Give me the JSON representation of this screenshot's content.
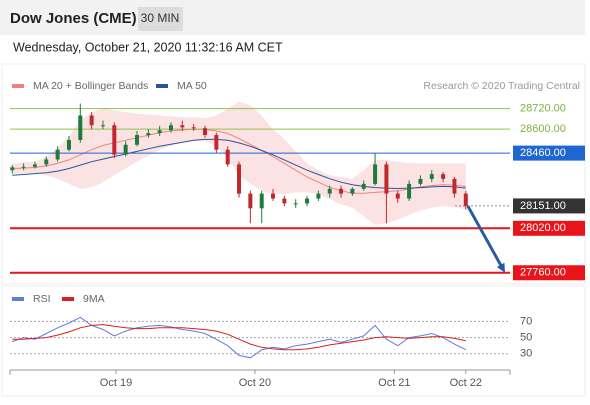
{
  "chart_data": [
    {
      "type": "candlestick",
      "title": "Dow Jones (CME)",
      "timeframe": "30 MIN",
      "subtitle": "Wednesday, October 21, 2020 11:32:16 AM CET",
      "source": "Research © 2020 Trading Central",
      "xlim": [
        -0.2,
        43.9
      ],
      "ylim": [
        27700,
        28800
      ],
      "up_color": "#1e7b3c",
      "down_color": "#c0282d",
      "open": [
        28360,
        28377,
        28380,
        28394,
        28423,
        28480,
        28537,
        28680,
        28623,
        28623,
        28451,
        28509,
        28566,
        28577,
        28594,
        28623,
        28611,
        28606,
        28566,
        28480,
        28394,
        28223,
        28137,
        28223,
        28194,
        28166,
        28166,
        28194,
        28223,
        28251,
        28223,
        28251,
        28280,
        28394,
        28223,
        28194,
        28280,
        28309,
        28337,
        28309,
        28223
      ],
      "high": [
        28390,
        28400,
        28410,
        28440,
        28500,
        28560,
        28750,
        28700,
        28650,
        28640,
        28530,
        28590,
        28600,
        28620,
        28640,
        28650,
        28630,
        28620,
        28580,
        28500,
        28410,
        28240,
        28240,
        28250,
        28210,
        28190,
        28210,
        28240,
        28270,
        28270,
        28260,
        28300,
        28460,
        28410,
        28240,
        28300,
        28330,
        28360,
        28350,
        28320,
        28240
      ],
      "low": [
        28340,
        28360,
        28370,
        28380,
        28410,
        28470,
        28520,
        28600,
        28600,
        28430,
        28440,
        28500,
        28550,
        28560,
        28580,
        28590,
        28590,
        28550,
        28460,
        28380,
        28200,
        28050,
        28050,
        28180,
        28150,
        28140,
        28150,
        28180,
        28200,
        28200,
        28210,
        28240,
        28270,
        28050,
        28170,
        28180,
        28270,
        28290,
        28290,
        28200,
        28130
      ],
      "close": [
        28377,
        28380,
        28394,
        28423,
        28480,
        28537,
        28680,
        28623,
        28623,
        28451,
        28509,
        28566,
        28577,
        28594,
        28623,
        28611,
        28606,
        28566,
        28480,
        28394,
        28223,
        28137,
        28223,
        28194,
        28166,
        28166,
        28194,
        28223,
        28251,
        28223,
        28251,
        28280,
        28394,
        28223,
        28194,
        28280,
        28309,
        28337,
        28309,
        28223,
        28151
      ],
      "series": [
        {
          "name": "MA 20 + Bollinger Bands",
          "color": "#f08080",
          "values": [
            28370,
            28372,
            28376,
            28385,
            28400,
            28420,
            28450,
            28480,
            28505,
            28520,
            28535,
            28550,
            28565,
            28580,
            28590,
            28595,
            28600,
            28598,
            28590,
            28575,
            28545,
            28510,
            28475,
            28440,
            28400,
            28360,
            28320,
            28290,
            28260,
            28240,
            28225,
            28225,
            28230,
            28235,
            28240,
            28250,
            28262,
            28270,
            28275,
            28272,
            28265
          ],
          "upper": [
            28400,
            28405,
            28410,
            28440,
            28490,
            28560,
            28650,
            28700,
            28720,
            28710,
            28700,
            28690,
            28685,
            28680,
            28675,
            28670,
            28670,
            28665,
            28680,
            28720,
            28760,
            28740,
            28680,
            28600,
            28540,
            28470,
            28400,
            28360,
            28330,
            28320,
            28310,
            28360,
            28420,
            28420,
            28410,
            28400,
            28400,
            28400,
            28400,
            28400,
            28400
          ],
          "lower": [
            28340,
            28340,
            28342,
            28330,
            28310,
            28280,
            28250,
            28260,
            28290,
            28330,
            28370,
            28410,
            28445,
            28480,
            28505,
            28520,
            28530,
            28531,
            28500,
            28430,
            28330,
            28280,
            28240,
            28220,
            28220,
            28230,
            28230,
            28220,
            28190,
            28160,
            28140,
            28090,
            28040,
            28050,
            28070,
            28100,
            28124,
            28140,
            28150,
            28144,
            28130
          ]
        },
        {
          "name": "MA 50",
          "color": "#2a52a0",
          "values": [
            28330,
            28335,
            28340,
            28345,
            28355,
            28370,
            28390,
            28410,
            28425,
            28440,
            28455,
            28470,
            28485,
            28500,
            28512,
            28524,
            28535,
            28540,
            28540,
            28535,
            28520,
            28500,
            28475,
            28450,
            28420,
            28390,
            28360,
            28335,
            28310,
            28290,
            28275,
            28265,
            28258,
            28255,
            28253,
            28255,
            28258,
            28262,
            28265,
            28262,
            28255
          ]
        }
      ],
      "levels": [
        {
          "value": 28720,
          "label": "28720.00",
          "color": "#8bc34a",
          "boxed": false,
          "style": "solid"
        },
        {
          "value": 28600,
          "label": "28600.00",
          "color": "#8bc34a",
          "boxed": false,
          "style": "solid"
        },
        {
          "value": 28460,
          "label": "28460.00",
          "color": "#1e66d0",
          "boxed": true,
          "style": "solid"
        },
        {
          "value": 28151,
          "label": "28151.00",
          "color": "#333333",
          "boxed": true,
          "style": "dotted"
        },
        {
          "value": 28020,
          "label": "28020.00",
          "color": "#e8141a",
          "boxed": true,
          "style": "solid"
        },
        {
          "value": 27760,
          "label": "27760.00",
          "color": "#e8141a",
          "boxed": true,
          "style": "solid"
        }
      ],
      "target": 27760,
      "arrow_color": "#2a5aa0"
    },
    {
      "type": "line",
      "xlim": [
        -0.2,
        43.9
      ],
      "ylim": [
        10,
        84
      ],
      "yticks": [
        30,
        50,
        70
      ],
      "xticks": [
        {
          "value": 9.15,
          "label": "Oct 19"
        },
        {
          "value": 21.4,
          "label": "Oct 20"
        },
        {
          "value": 33.7,
          "label": "Oct 21"
        },
        {
          "value": 40,
          "label": "Oct 22"
        }
      ],
      "series": [
        {
          "name": "RSI",
          "color": "#5b7fd8",
          "values": [
            45,
            50,
            48,
            55,
            62,
            68,
            75,
            65,
            60,
            52,
            58,
            62,
            64,
            65,
            63,
            60,
            58,
            55,
            48,
            40,
            28,
            25,
            35,
            38,
            36,
            40,
            42,
            45,
            48,
            44,
            48,
            52,
            65,
            48,
            40,
            50,
            52,
            55,
            50,
            42,
            35
          ]
        },
        {
          "name": "9MA",
          "color": "#d92020",
          "values": [
            48,
            48,
            49,
            50,
            53,
            57,
            62,
            65,
            66,
            64,
            62,
            61,
            61,
            62,
            62,
            62,
            61,
            60,
            58,
            54,
            48,
            42,
            38,
            36,
            35,
            35,
            36,
            38,
            41,
            43,
            45,
            47,
            50,
            51,
            50,
            49,
            50,
            51,
            51,
            49,
            46
          ]
        }
      ]
    }
  ]
}
